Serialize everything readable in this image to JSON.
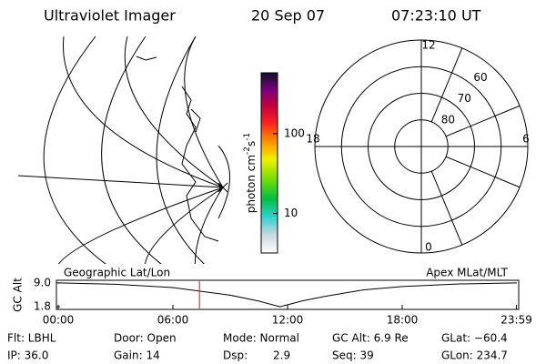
{
  "header": {
    "title": "Ultraviolet Imager",
    "date": "20 Sep 07",
    "time": "07:23:10 UT"
  },
  "colorbar": {
    "label": [
      "photon cm",
      "-2",
      "s",
      "-1"
    ],
    "lim": [
      3.2,
      580
    ],
    "log": true,
    "ticks": [
      10,
      100
    ]
  },
  "polar": {
    "rlim": [
      90,
      50
    ],
    "ring_ticks": [
      80,
      70,
      60
    ],
    "mlt_ticks": [
      0,
      6,
      12,
      18
    ]
  },
  "altitude_plot": {
    "left_label": "Geographic Lat/Lon",
    "right_label": "Apex MLat/MLT",
    "ylabel": "GC Alt",
    "xlim": [
      0,
      24
    ],
    "ylim": [
      1.0,
      9.8
    ],
    "xticks": [
      {
        "value": 0,
        "label": "00:00"
      },
      {
        "value": 6,
        "label": "06:00"
      },
      {
        "value": 12,
        "label": "12:00"
      },
      {
        "value": 18,
        "label": "18:00"
      },
      {
        "value": 23.98,
        "label": "23:59"
      }
    ],
    "yticks": [
      1.8,
      {
        "value": 9.0,
        "label": "9.0"
      }
    ],
    "x": [
      0,
      3,
      6,
      9,
      10.5,
      11.6,
      12.8,
      14,
      16,
      18,
      21,
      24
    ],
    "values": [
      9.0,
      8.6,
      7.6,
      5.3,
      3.5,
      1.8,
      3.6,
      5.0,
      6.9,
      7.9,
      8.7,
      9.0
    ],
    "current_time": 7.39,
    "marker_color": "#ff0000"
  },
  "info": [
    [
      "Flt: LBHL",
      "Door: Open",
      "Mode: Normal",
      "GC Alt: 6.9 Re",
      "GLat: −60.4"
    ],
    [
      "IP: 36.0",
      "Gain: 14",
      "Dsp:",
      "2.9",
      "Seq: 39",
      "GLon: 234.7"
    ]
  ]
}
